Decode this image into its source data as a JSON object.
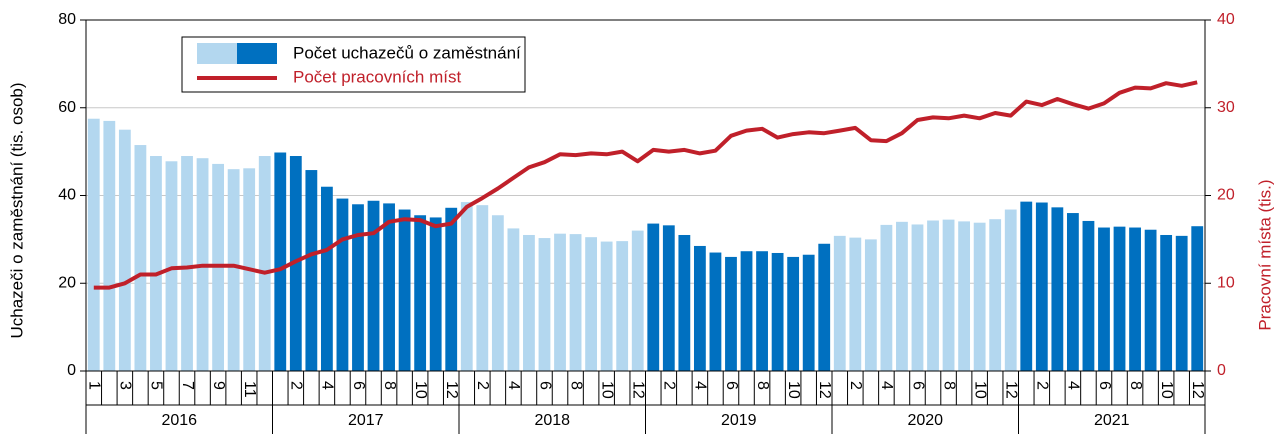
{
  "chart_data": {
    "type": "bar_line",
    "categories": [
      "1",
      null,
      "3",
      null,
      "5",
      null,
      "7",
      null,
      "9",
      null,
      "11",
      null,
      null,
      "2",
      null,
      "4",
      null,
      "6",
      null,
      "8",
      null,
      "10",
      null,
      "12",
      null,
      "2",
      null,
      "4",
      null,
      "6",
      null,
      "8",
      null,
      "10",
      null,
      "12",
      null,
      "2",
      null,
      "4",
      null,
      "6",
      null,
      "8",
      null,
      "10",
      null,
      "12",
      null,
      "2",
      null,
      "4",
      null,
      "6",
      null,
      "8",
      null,
      "10",
      null,
      "12",
      null,
      "2",
      null,
      "4",
      null,
      "6",
      null,
      "8",
      null,
      "10",
      null,
      "12"
    ],
    "x_groups": [
      "2016",
      "2017",
      "2018",
      "2019",
      "2020",
      "2021"
    ],
    "ylabel": "Uchazeči o zaměstnání (tis. osob)",
    "y2label": "Pracovní místa (tis.)",
    "ylim": [
      0,
      80
    ],
    "yticks": [
      0,
      20,
      40,
      60,
      80
    ],
    "y2lim": [
      0,
      40
    ],
    "y2ticks": [
      0,
      10,
      20,
      30,
      40
    ],
    "grid": true,
    "legend": "upper left",
    "series": [
      {
        "name": "Počet uchazečů o zaměstnání",
        "type": "bar",
        "colors": [
          "#b3d7ef",
          "#0070c0"
        ],
        "values": [
          57.5,
          57,
          55,
          51.5,
          49,
          47.8,
          49,
          48.5,
          47.2,
          46,
          46.2,
          49,
          49.8,
          49,
          45.8,
          42,
          39.3,
          38,
          38.8,
          38.2,
          36.8,
          35.5,
          35,
          37.2,
          38.5,
          37.8,
          35.5,
          32.5,
          31,
          30.3,
          31.3,
          31.2,
          30.5,
          29.5,
          29.6,
          32,
          33.6,
          33.2,
          31,
          28.5,
          27,
          26,
          27.3,
          27.3,
          26.9,
          26,
          26.5,
          29,
          30.8,
          30.4,
          30,
          33.3,
          34,
          33.4,
          34.3,
          34.5,
          34.1,
          33.8,
          34.6,
          36.8,
          38.6,
          38.4,
          37.3,
          36,
          34.2,
          32.7,
          32.9,
          32.7,
          32.2,
          31,
          30.8,
          33
        ]
      },
      {
        "name": "Počet pracovních míst",
        "type": "line",
        "axis": "y2",
        "color": "#c0202a",
        "values": [
          9.5,
          9.5,
          10,
          11,
          11,
          11.7,
          11.8,
          12,
          12,
          12,
          11.6,
          11.2,
          11.6,
          12.5,
          13.3,
          13.8,
          15,
          15.5,
          15.7,
          17,
          17.3,
          17.2,
          16.5,
          16.8,
          18.7,
          19.7,
          20.8,
          22,
          23.2,
          23.8,
          24.7,
          24.6,
          24.8,
          24.7,
          25,
          23.9,
          25.2,
          25,
          25.2,
          24.8,
          25.1,
          26.8,
          27.4,
          27.6,
          26.6,
          27,
          27.2,
          27.1,
          27.4,
          27.7,
          26.3,
          26.2,
          27.1,
          28.6,
          28.9,
          28.8,
          29.1,
          28.8,
          29.4,
          29.1,
          30.7,
          30.3,
          31,
          30.4,
          29.9,
          30.5,
          31.7,
          32.3,
          32.2,
          32.8,
          32.5,
          32.9
        ]
      }
    ]
  }
}
